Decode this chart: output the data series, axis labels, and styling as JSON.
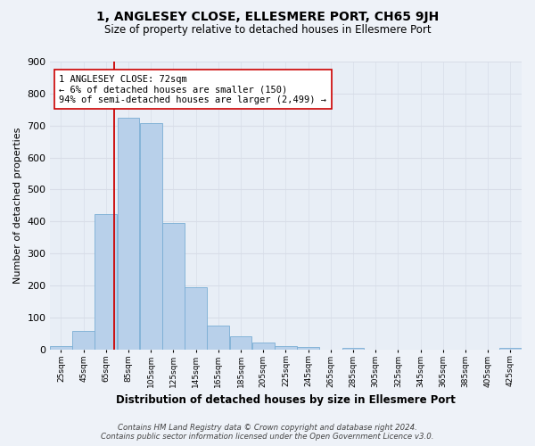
{
  "title": "1, ANGLESEY CLOSE, ELLESMERE PORT, CH65 9JH",
  "subtitle": "Size of property relative to detached houses in Ellesmere Port",
  "xlabel": "Distribution of detached houses by size in Ellesmere Port",
  "ylabel": "Number of detached properties",
  "bar_color": "#b8d0ea",
  "bar_edge_color": "#7aadd4",
  "bin_starts": [
    15,
    35,
    55,
    75,
    95,
    115,
    135,
    155,
    175,
    195,
    215,
    235,
    255,
    275,
    295,
    315,
    335,
    355,
    375,
    395,
    415
  ],
  "bin_width": 20,
  "bin_labels": [
    "25sqm",
    "45sqm",
    "65sqm",
    "85sqm",
    "105sqm",
    "125sqm",
    "145sqm",
    "165sqm",
    "185sqm",
    "205sqm",
    "225sqm",
    "245sqm",
    "265sqm",
    "285sqm",
    "305sqm",
    "325sqm",
    "345sqm",
    "365sqm",
    "385sqm",
    "405sqm",
    "425sqm"
  ],
  "counts": [
    10,
    57,
    422,
    724,
    708,
    396,
    195,
    75,
    41,
    22,
    10,
    8,
    0,
    5,
    0,
    0,
    0,
    0,
    0,
    0,
    5
  ],
  "vline_x": 72,
  "vline_color": "#cc0000",
  "annotation_text": "1 ANGLESEY CLOSE: 72sqm\n← 6% of detached houses are smaller (150)\n94% of semi-detached houses are larger (2,499) →",
  "annotation_box_color": "#ffffff",
  "annotation_box_edge": "#cc0000",
  "ylim": [
    0,
    900
  ],
  "yticks": [
    0,
    100,
    200,
    300,
    400,
    500,
    600,
    700,
    800,
    900
  ],
  "footer_line1": "Contains HM Land Registry data © Crown copyright and database right 2024.",
  "footer_line2": "Contains public sector information licensed under the Open Government Licence v3.0.",
  "bg_color": "#eef2f8",
  "grid_color": "#d8dde8",
  "plot_bg": "#e8eef6"
}
